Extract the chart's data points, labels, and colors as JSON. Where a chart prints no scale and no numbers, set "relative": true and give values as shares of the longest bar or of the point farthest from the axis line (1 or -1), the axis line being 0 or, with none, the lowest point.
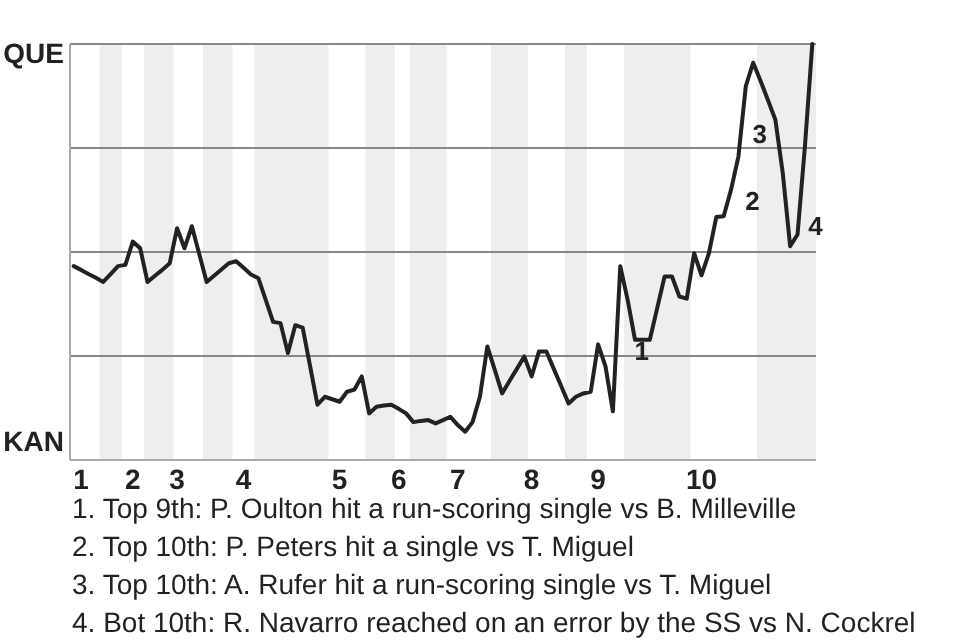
{
  "chart_data": {
    "type": "line",
    "relative": true,
    "categories": [
      null,
      "1",
      null,
      null,
      null,
      null,
      null,
      null,
      "2",
      null,
      null,
      null,
      null,
      null,
      "3",
      null,
      null,
      null,
      null,
      null,
      null,
      null,
      null,
      "4",
      null,
      null,
      null,
      null,
      null,
      null,
      null,
      null,
      null,
      null,
      null,
      null,
      "5",
      null,
      null,
      null,
      null,
      null,
      null,
      null,
      "6",
      null,
      null,
      null,
      null,
      null,
      null,
      null,
      "7",
      null,
      null,
      null,
      null,
      null,
      null,
      null,
      null,
      null,
      "8",
      null,
      null,
      null,
      null,
      null,
      null,
      null,
      null,
      "9",
      null,
      null,
      null,
      null,
      null,
      null,
      null,
      null,
      null,
      null,
      null,
      null,
      null,
      "10",
      null,
      null,
      null,
      null,
      null,
      null,
      null,
      null,
      null,
      null,
      null,
      null,
      null,
      null,
      null
    ],
    "series": [
      {
        "color": "#222222",
        "values": [
          0.466,
          0.457,
          0.447,
          0.438,
          0.428,
          0.447,
          0.466,
          0.469,
          0.525,
          0.509,
          0.428,
          0.443,
          0.457,
          0.473,
          0.557,
          0.509,
          0.562,
          0.495,
          0.428,
          0.443,
          0.458,
          0.473,
          0.478,
          0.462,
          0.446,
          0.437,
          0.385,
          0.332,
          0.329,
          0.257,
          0.324,
          0.318,
          0.226,
          0.133,
          0.152,
          0.146,
          0.14,
          0.164,
          0.169,
          0.201,
          0.112,
          0.128,
          0.131,
          0.133,
          0.123,
          0.112,
          0.091,
          0.094,
          0.096,
          0.088,
          0.096,
          0.104,
          0.084,
          0.068,
          0.091,
          0.152,
          0.273,
          0.217,
          0.16,
          0.19,
          0.219,
          0.249,
          0.201,
          0.261,
          0.261,
          0.219,
          0.178,
          0.136,
          0.152,
          0.16,
          0.164,
          0.278,
          0.225,
          0.117,
          0.466,
          0.385,
          0.289,
          0.289,
          0.289,
          0.365,
          0.441,
          0.441,
          0.393,
          0.388,
          0.497,
          0.444,
          0.497,
          0.584,
          0.586,
          0.65,
          0.73,
          0.899,
          0.955,
          0.911,
          0.865,
          0.818,
          0.69,
          0.514,
          0.542,
          0.754,
          1.0
        ]
      }
    ],
    "marker": "none",
    "ref_lines": [
      {
        "axis": "y",
        "value": 0.25,
        "color": "#888888"
      },
      {
        "axis": "y",
        "value": 0.5,
        "color": "#888888"
      },
      {
        "axis": "y",
        "value": 0.75,
        "color": "#888888"
      },
      {
        "axis": "y",
        "value": 1,
        "color": "#888888"
      }
    ],
    "annotations": [
      "QUE",
      "KAN",
      "1",
      "2",
      "3",
      "4",
      "1. Top 9th: P. Oulton hit a run-scoring single vs B. Milleville",
      "2. Top 10th: P. Peters hit a single vs T. Miguel",
      "3. Top 10th: A. Rufer hit a run-scoring single vs T. Miguel",
      "4. Bot 10th: R. Navarro reached on an error by the SS vs N. Cockrel"
    ]
  }
}
